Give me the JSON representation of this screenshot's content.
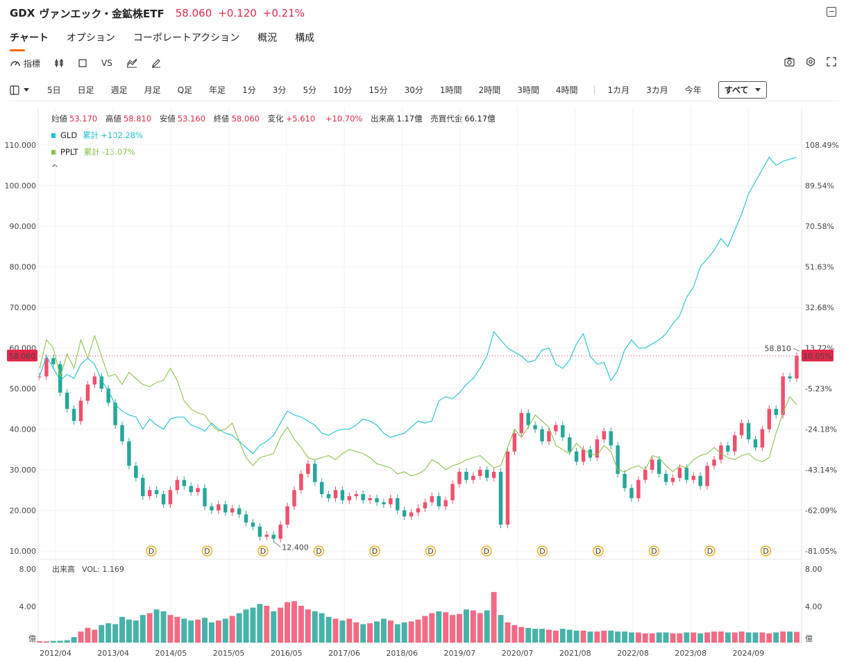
{
  "header": {
    "symbol": "GDX",
    "name": "ヴァンエック・金鉱株ETF",
    "price": "58.060",
    "change": "+0.120",
    "change_pct": "+0.21%"
  },
  "tabs": [
    "チャート",
    "オプション",
    "コーポレートアクション",
    "概況",
    "構成"
  ],
  "toolbar": {
    "indicator_label": "指標",
    "vs_label": "VS"
  },
  "periods": [
    "5日",
    "日足",
    "週足",
    "月足",
    "Q足",
    "年足",
    "1分",
    "3分",
    "5分",
    "10分",
    "15分",
    "30分",
    "1時間",
    "2時間",
    "3時間",
    "4時間"
  ],
  "ranges": [
    "1カ月",
    "3カ月",
    "今年"
  ],
  "range_selected": "すべて",
  "ohlc": {
    "open_label": "始値",
    "open": "53.170",
    "high_label": "高値",
    "high": "58.810",
    "low_label": "安値",
    "low": "53.160",
    "close_label": "終値",
    "close": "58.060",
    "change_label": "変化",
    "change": "+5.610",
    "change_pct": "+10.70%",
    "volume_label": "出来高",
    "volume": "1.17億",
    "turnover_label": "売買代金",
    "turnover": "66.17億"
  },
  "compare": [
    {
      "symbol": "GLD",
      "label": "累計",
      "value": "+102.28%",
      "color": "#1bc1d0"
    },
    {
      "symbol": "PPLT",
      "label": "累計",
      "value": "-13.07%",
      "color": "#8bc34a"
    }
  ],
  "collapse_glyph": "^",
  "colors": {
    "up": "#f0506e",
    "down": "#26a69a",
    "accent": "#ff6a00",
    "price_tag": "#e0294a"
  },
  "chart_data": {
    "type": "line",
    "price_axis": {
      "min": 10,
      "max": 110,
      "ticks": [
        "110.000",
        "100.000",
        "90.000",
        "80.000",
        "70.000",
        "60.000",
        "50.000",
        "40.000",
        "30.000",
        "20.000",
        "10.000"
      ]
    },
    "pct_axis": {
      "ticks": [
        "108.49%",
        "89.54%",
        "70.58%",
        "51.63%",
        "32.68%",
        "13.72%",
        "-5.23%",
        "-24.18%",
        "-43.14%",
        "-62.09%",
        "-81.05%"
      ]
    },
    "x_labels": [
      "2012/04",
      "2013/04",
      "2014/05",
      "2015/05",
      "2016/05",
      "2017/06",
      "2018/06",
      "2019/07",
      "2020/07",
      "2021/08",
      "2022/08",
      "2023/08",
      "2024/09"
    ],
    "current_price_tag": "58.060",
    "current_pct_tag": "10.05%",
    "high_annotation": "58.810",
    "low_annotation": "12.400",
    "dividend_marker": "D",
    "dividend_count": 12,
    "series": [
      {
        "name": "GDX",
        "style": "candles",
        "values": [
          53.0,
          57.5,
          56.0,
          49.0,
          45.0,
          42.0,
          47.0,
          51.0,
          53.0,
          50.0,
          46.5,
          41.0,
          37.0,
          31.0,
          28.0,
          23.5,
          25.0,
          24.0,
          21.5,
          25.0,
          27.5,
          26.0,
          24.5,
          25.5,
          21.0,
          20.0,
          21.5,
          19.5,
          20.5,
          19.0,
          17.0,
          16.0,
          13.5,
          14.0,
          13.0,
          16.5,
          21.0,
          25.0,
          29.0,
          31.5,
          27.0,
          24.0,
          23.0,
          25.0,
          22.5,
          23.5,
          24.0,
          22.5,
          23.0,
          22.0,
          21.5,
          23.0,
          20.0,
          18.5,
          19.5,
          20.5,
          22.0,
          23.5,
          21.0,
          22.5,
          26.5,
          29.5,
          27.5,
          28.5,
          30.0,
          28.0,
          29.5,
          16.5,
          34.5,
          39.0,
          44.0,
          41.0,
          40.0,
          37.0,
          39.5,
          41.0,
          38.0,
          34.5,
          32.0,
          35.0,
          33.0,
          37.5,
          39.5,
          36.0,
          29.0,
          25.5,
          23.0,
          27.5,
          30.0,
          32.5,
          29.0,
          27.0,
          28.0,
          30.5,
          27.5,
          28.5,
          26.0,
          31.0,
          32.5,
          36.0,
          34.5,
          38.5,
          41.5,
          37.5,
          35.5,
          40.0,
          45.0,
          43.5,
          53.0,
          52.5,
          58.06
        ]
      },
      {
        "name": "GLD",
        "style": "line",
        "values": [
          53.0,
          58.0,
          55.0,
          52.0,
          53.5,
          52.5,
          56.0,
          57.5,
          56.0,
          52.0,
          49.5,
          46.0,
          44.5,
          43.5,
          43.0,
          40.0,
          42.5,
          41.0,
          40.0,
          42.5,
          43.0,
          43.0,
          41.0,
          40.5,
          39.5,
          41.5,
          40.0,
          39.0,
          38.5,
          37.0,
          35.5,
          34.0,
          36.0,
          37.0,
          38.5,
          41.5,
          44.5,
          43.5,
          43.0,
          42.0,
          41.0,
          39.0,
          38.5,
          39.5,
          40.0,
          40.0,
          41.0,
          42.5,
          42.0,
          41.0,
          39.0,
          38.0,
          38.5,
          39.0,
          40.5,
          42.0,
          41.5,
          42.0,
          47.0,
          48.0,
          47.5,
          49.0,
          51.0,
          52.5,
          55.0,
          58.0,
          64.0,
          62.0,
          60.0,
          59.0,
          58.0,
          56.5,
          57.0,
          59.5,
          60.0,
          56.0,
          55.0,
          57.0,
          61.0,
          63.5,
          58.0,
          56.0,
          56.5,
          52.0,
          54.5,
          59.5,
          62.0,
          60.0,
          60.0,
          61.0,
          62.0,
          63.5,
          66.0,
          68.0,
          72.5,
          75.0,
          80.0,
          82.0,
          84.0,
          87.0,
          85.0,
          89.0,
          93.0,
          98.0,
          101.0,
          104.0,
          107.0,
          105.0,
          106.0,
          106.5,
          107.0
        ]
      },
      {
        "name": "PPLT",
        "style": "line",
        "values": [
          55.0,
          62.0,
          60.0,
          53.0,
          58.5,
          55.0,
          62.0,
          57.5,
          63.0,
          58.0,
          53.0,
          53.5,
          51.0,
          54.0,
          52.5,
          51.0,
          50.5,
          51.5,
          52.0,
          55.0,
          52.0,
          47.0,
          45.0,
          44.0,
          43.5,
          41.0,
          39.5,
          40.0,
          41.5,
          37.0,
          33.0,
          31.0,
          33.0,
          33.5,
          34.0,
          38.0,
          40.5,
          37.5,
          35.5,
          33.0,
          32.5,
          33.0,
          33.5,
          32.5,
          34.0,
          35.0,
          34.5,
          34.0,
          33.0,
          31.5,
          31.0,
          30.5,
          29.0,
          29.5,
          28.5,
          29.0,
          30.0,
          32.5,
          31.5,
          30.0,
          31.0,
          31.5,
          32.5,
          33.0,
          33.5,
          32.0,
          30.5,
          31.0,
          35.5,
          40.0,
          38.0,
          40.5,
          43.5,
          42.0,
          40.5,
          36.0,
          35.0,
          34.0,
          36.5,
          35.0,
          34.0,
          33.5,
          36.0,
          34.5,
          30.0,
          29.5,
          30.5,
          31.0,
          30.0,
          33.5,
          33.0,
          31.0,
          29.5,
          31.0,
          30.5,
          32.5,
          33.5,
          34.0,
          35.5,
          34.0,
          33.0,
          32.5,
          33.5,
          34.0,
          32.5,
          32.0,
          33.0,
          39.0,
          44.0,
          48.0,
          46.0
        ]
      }
    ],
    "volume": {
      "label": "出来高",
      "value_label": "VOL: 1.169",
      "unit": "億",
      "ticks": [
        "8.00",
        "4.00"
      ],
      "max": 8,
      "values": [
        0.15,
        0.12,
        0.18,
        0.2,
        0.25,
        0.6,
        1.2,
        1.6,
        1.4,
        1.9,
        2.1,
        2.0,
        2.8,
        2.5,
        2.4,
        3.0,
        3.2,
        3.6,
        3.4,
        3.0,
        2.8,
        2.6,
        2.4,
        2.5,
        2.7,
        2.2,
        2.4,
        2.6,
        2.9,
        3.2,
        3.6,
        3.8,
        4.2,
        4.0,
        3.4,
        3.8,
        4.4,
        4.5,
        4.0,
        3.6,
        3.4,
        3.2,
        2.8,
        2.6,
        2.4,
        2.6,
        2.2,
        2.0,
        2.1,
        2.3,
        2.6,
        2.4,
        2.0,
        2.2,
        2.3,
        2.5,
        2.9,
        3.2,
        3.4,
        3.3,
        3.0,
        3.1,
        3.6,
        3.5,
        3.2,
        3.5,
        5.5,
        3.0,
        2.2,
        1.9,
        1.7,
        1.6,
        1.5,
        1.5,
        1.4,
        1.3,
        1.5,
        1.4,
        1.3,
        1.3,
        1.2,
        1.2,
        1.3,
        1.3,
        1.2,
        1.2,
        1.1,
        1.1,
        1.0,
        1.0,
        1.1,
        1.1,
        1.0,
        1.0,
        1.1,
        1.1,
        1.0,
        1.1,
        1.2,
        1.2,
        1.1,
        1.1,
        1.2,
        1.1,
        1.1,
        1.1,
        1.0,
        1.1,
        1.2,
        1.2,
        1.169
      ]
    }
  }
}
